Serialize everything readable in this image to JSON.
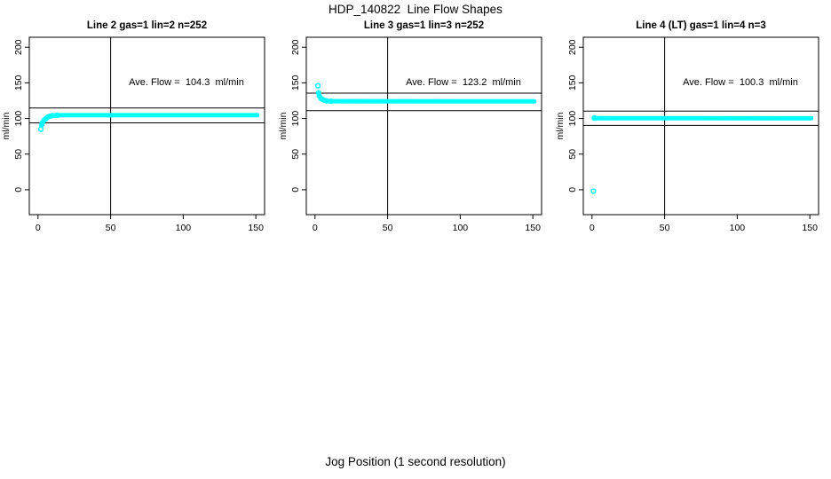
{
  "figure": {
    "title": "HDP_140822  Line Flow Shapes",
    "xlabel": "Jog Position (1 second resolution)",
    "background_color": "#ffffff",
    "data_color": "#00ffff",
    "line_color": "#000000"
  },
  "chart_data": {
    "type": "scatter",
    "common": {
      "ylabel": "ml/min",
      "xlim": [
        -6,
        156
      ],
      "ylim": [
        -35,
        214
      ],
      "xticks": [
        0,
        50,
        100,
        150
      ],
      "yticks": [
        0,
        50,
        100,
        150,
        200
      ],
      "vline_x": 50,
      "grid": false,
      "marker": "open-circle-cyan"
    },
    "plots": [
      {
        "title": "Line 2 gas=1 lin=2 n=252",
        "annotation": "Ave. Flow =  104.3  ml/min",
        "ave_flow": 104.3,
        "gas": 1,
        "lin": 2,
        "n": 252,
        "href_lines": [
          114.7,
          93.9
        ],
        "isolated_points": [
          [
            2,
            85
          ]
        ],
        "band": [
          [
            2.5,
            91
          ],
          [
            3,
            94
          ],
          [
            4,
            97
          ],
          [
            5,
            99
          ],
          [
            6,
            101
          ],
          [
            7,
            102.3
          ],
          [
            8,
            103
          ],
          [
            10,
            104
          ],
          [
            13,
            104.6
          ],
          [
            151,
            104.6
          ]
        ]
      },
      {
        "title": "Line 3 gas=1 lin=3 n=252",
        "annotation": "Ave. Flow =  123.2  ml/min",
        "ave_flow": 123.2,
        "gas": 1,
        "lin": 3,
        "n": 252,
        "href_lines": [
          135.5,
          110.9
        ],
        "isolated_points": [
          [
            2,
            146
          ]
        ],
        "band": [
          [
            2.5,
            136
          ],
          [
            3,
            131.5
          ],
          [
            4,
            128.5
          ],
          [
            5,
            126.8
          ],
          [
            6,
            125.8
          ],
          [
            8,
            124.8
          ],
          [
            11,
            124.2
          ],
          [
            151,
            124
          ]
        ]
      },
      {
        "title": "Line 4 (LT) gas=1 lin=4 n=3",
        "annotation": "Ave. Flow =  100.3  ml/min",
        "ave_flow": 100.3,
        "gas": 1,
        "lin": 4,
        "n": 3,
        "href_lines": [
          110.3,
          90.3
        ],
        "isolated_points": [
          [
            1,
            -2
          ]
        ],
        "band": [
          [
            1.5,
            100.6
          ],
          [
            2,
            100.4
          ],
          [
            151,
            100.3
          ]
        ],
        "band2": [
          [
            2,
            99.3
          ],
          [
            24,
            99.4
          ]
        ]
      }
    ]
  }
}
